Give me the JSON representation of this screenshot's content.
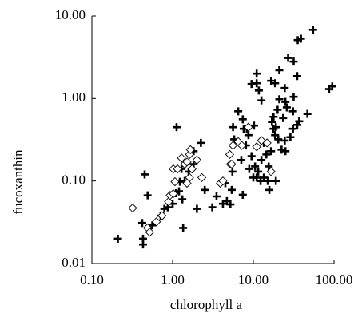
{
  "chart_data": {
    "type": "scatter",
    "xlabel": "chlorophyll a",
    "ylabel": "fucoxanthin",
    "xscale": "log",
    "yscale": "log",
    "xlim": [
      0.1,
      100
    ],
    "ylim": [
      0.01,
      10
    ],
    "xticks": [
      {
        "value": 0.1,
        "label": "0.10"
      },
      {
        "value": 1,
        "label": "1.00"
      },
      {
        "value": 10,
        "label": "10.00"
      },
      {
        "value": 100,
        "label": "100.00"
      }
    ],
    "yticks": [
      {
        "value": 0.01,
        "label": "0.01"
      },
      {
        "value": 0.1,
        "label": "0.10"
      },
      {
        "value": 1,
        "label": "1.00"
      },
      {
        "value": 10,
        "label": "10.00"
      }
    ],
    "series": [
      {
        "marker": "plus",
        "color": "#000000",
        "x": [
          0.21,
          0.42,
          0.45,
          0.49,
          0.43,
          0.43,
          0.56,
          0.71,
          0.79,
          0.87,
          1.0,
          1.12,
          1.1,
          1.2,
          1.32,
          1.35,
          1.23,
          1.29,
          1.41,
          1.58,
          1.82,
          1.82,
          2.0,
          2.24,
          2.5,
          3.1,
          3.5,
          4.2,
          4.7,
          4.5,
          5.4,
          5.5,
          5.8,
          5.2,
          5.6,
          6.5,
          7.1,
          7.4,
          7.6,
          8.3,
          8.7,
          8.1,
          8.9,
          9.5,
          10,
          10.5,
          11,
          11.5,
          12.3,
          12.6,
          13.5,
          13.5,
          14.5,
          15.1,
          15.5,
          16.6,
          17.8,
          18.6,
          17,
          20.4,
          22.4,
          24.5,
          25,
          28.8,
          31,
          35,
          37,
          31,
          31.6,
          25,
          23.4,
          26,
          19,
          20,
          16.6,
          18.6,
          24.5,
          27,
          31.6,
          35.5,
          38.9,
          35,
          21,
          21,
          11,
          11,
          12.6,
          9.5,
          11.7,
          10.2,
          17.8,
          46.8,
          55,
          87,
          95,
          15.8,
          19,
          7.4
        ],
        "values": [
          0.02,
          0.031,
          0.12,
          0.067,
          0.02,
          0.017,
          0.029,
          0.038,
          0.046,
          0.048,
          0.053,
          0.45,
          0.071,
          0.075,
          0.06,
          0.027,
          0.098,
          0.14,
          0.1,
          0.13,
          0.16,
          0.23,
          0.046,
          0.29,
          0.078,
          0.048,
          0.065,
          0.053,
          0.057,
          0.094,
          0.078,
          0.13,
          0.32,
          0.052,
          0.45,
          0.7,
          0.18,
          0.56,
          0.43,
          0.43,
          0.36,
          0.27,
          0.14,
          0.2,
          0.11,
          0.15,
          0.11,
          0.13,
          0.1,
          0.18,
          0.11,
          0.29,
          0.21,
          0.1,
          0.15,
          0.23,
          0.43,
          0.36,
          0.52,
          0.32,
          0.24,
          0.31,
          0.23,
          0.34,
          0.43,
          0.48,
          0.53,
          0.7,
          1.05,
          0.91,
          0.58,
          0.78,
          0.45,
          0.73,
          1.64,
          1.53,
          1.34,
          3.1,
          2.8,
          5.1,
          5.3,
          1.87,
          2.2,
          0.98,
          2.0,
          1.53,
          0.95,
          1.5,
          1.25,
          0.47,
          0.6,
          0.65,
          6.8,
          1.3,
          1.4,
          0.078,
          0.1,
          0.068
        ]
      },
      {
        "marker": "diamond",
        "color": "#000000",
        "x": [
          0.32,
          0.49,
          0.52,
          0.63,
          0.74,
          0.89,
          0.93,
          1.02,
          1.07,
          1.02,
          1.15,
          1.29,
          1.41,
          1.51,
          1.62,
          1.66,
          1.62,
          1.51,
          1.74,
          2.0,
          2.3,
          3.9,
          4.2,
          5.1,
          5.2,
          5.6,
          6.5,
          7.2,
          8.7,
          11,
          12.6,
          16.6,
          14.8,
          5.4
        ],
        "values": [
          0.047,
          0.027,
          0.024,
          0.032,
          0.038,
          0.056,
          0.067,
          0.07,
          0.098,
          0.14,
          0.14,
          0.19,
          0.16,
          0.17,
          0.21,
          0.24,
          0.11,
          0.094,
          0.14,
          0.18,
          0.11,
          0.094,
          0.1,
          0.21,
          0.16,
          0.27,
          0.3,
          0.27,
          0.45,
          0.26,
          0.31,
          0.13,
          0.29,
          0.16
        ]
      }
    ]
  }
}
